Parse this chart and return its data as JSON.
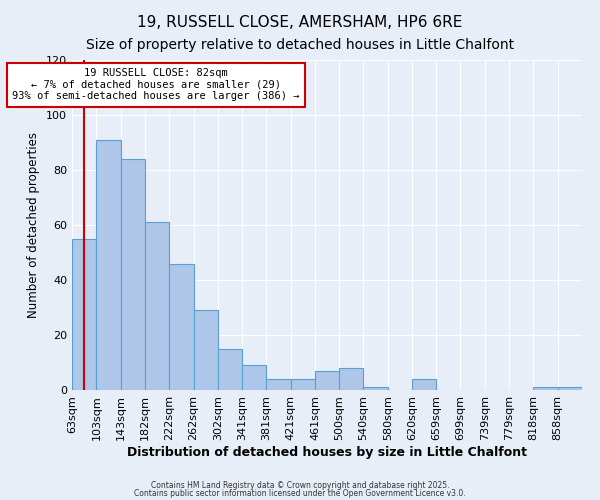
{
  "title": "19, RUSSELL CLOSE, AMERSHAM, HP6 6RE",
  "subtitle": "Size of property relative to detached houses in Little Chalfont",
  "xlabel": "Distribution of detached houses by size in Little Chalfont",
  "ylabel": "Number of detached properties",
  "bar_left_edges": [
    63,
    103,
    143,
    182,
    222,
    262,
    302,
    341,
    381,
    421,
    461,
    500,
    540,
    580,
    620,
    659,
    699,
    739,
    779,
    818,
    858
  ],
  "bar_heights": [
    55,
    91,
    84,
    61,
    46,
    29,
    15,
    9,
    4,
    4,
    7,
    8,
    1,
    0,
    4,
    0,
    0,
    0,
    0,
    1,
    1
  ],
  "bar_widths": [
    40,
    40,
    39,
    40,
    40,
    40,
    39,
    40,
    40,
    40,
    39,
    40,
    40,
    40,
    39,
    40,
    40,
    40,
    39,
    40,
    40
  ],
  "bar_color": "#aec6e8",
  "bar_edge_color": "#5a9fd4",
  "bg_color": "#e8eef8",
  "grid_color": "#ffffff",
  "red_line_x": 82,
  "red_line_color": "#cc0000",
  "ylim": [
    0,
    120
  ],
  "annotation_text": "19 RUSSELL CLOSE: 82sqm\n← 7% of detached houses are smaller (29)\n93% of semi-detached houses are larger (386) →",
  "annotation_box_color": "#ffffff",
  "annotation_box_edge_color": "#cc0000",
  "title_fontsize": 11,
  "subtitle_fontsize": 10,
  "tick_labels": [
    "63sqm",
    "103sqm",
    "143sqm",
    "182sqm",
    "222sqm",
    "262sqm",
    "302sqm",
    "341sqm",
    "381sqm",
    "421sqm",
    "461sqm",
    "500sqm",
    "540sqm",
    "580sqm",
    "620sqm",
    "659sqm",
    "699sqm",
    "739sqm",
    "779sqm",
    "818sqm",
    "858sqm"
  ],
  "footer_text1": "Contains HM Land Registry data © Crown copyright and database right 2025.",
  "footer_text2": "Contains public sector information licensed under the Open Government Licence v3.0."
}
